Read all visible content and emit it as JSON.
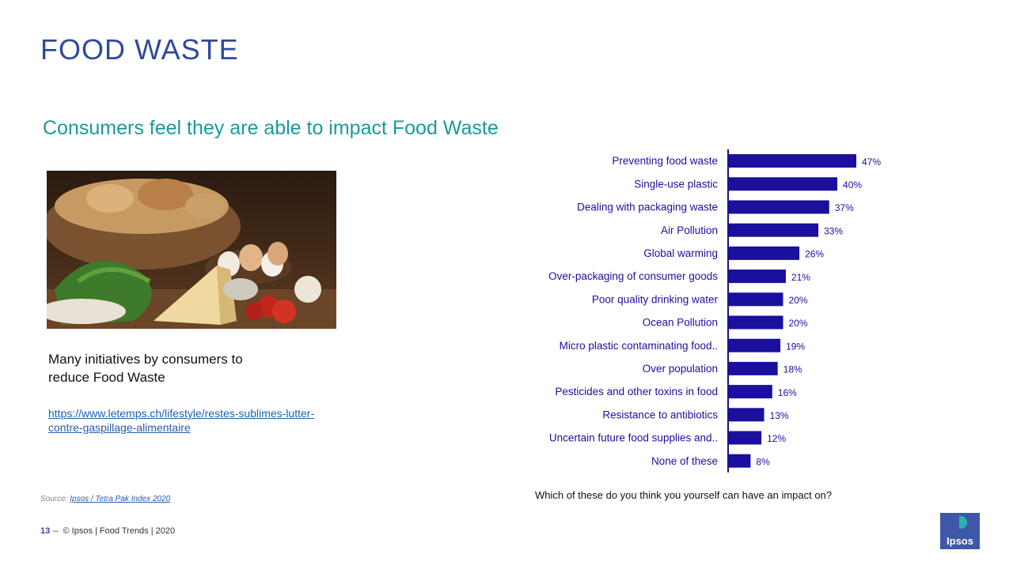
{
  "header": {
    "title": "FOOD WASTE",
    "subtitle": "Consumers feel they are able to impact Food Waste"
  },
  "left_panel": {
    "initiatives_text": "Many initiatives by consumers to reduce Food Waste",
    "link_text": "https://www.letemps.ch/lifestyle/restes-sublimes-lutter-contre-gaspillage-alimentaire"
  },
  "source": {
    "label": "Source:",
    "link": "Ipsos / Tetra Pak Index 2020"
  },
  "footer": {
    "page": "13",
    "dash": "–",
    "text": "© Ipsos | Food Trends | 2020"
  },
  "question": "Which of these do you think you yourself can have an impact on?",
  "logo_text": "Ipsos",
  "colors": {
    "bar": "#1b0f9e",
    "title": "#2f4a9c",
    "subtitle": "#1a9a9a",
    "logo": "#3f57a8",
    "logo_accent": "#2bb3b1"
  },
  "chart_data": {
    "type": "bar",
    "orientation": "horizontal",
    "categories": [
      "Preventing food waste",
      "Single-use plastic",
      "Dealing with packaging waste",
      "Air Pollution",
      "Global warming",
      "Over-packaging of consumer goods",
      "Poor quality drinking water",
      "Ocean Pollution",
      "Micro plastic contaminating food..",
      "Over population",
      "Pesticides and other toxins in food",
      "Resistance to antibiotics",
      "Uncertain future food supplies and..",
      "None of these"
    ],
    "values": [
      47,
      40,
      37,
      33,
      26,
      21,
      20,
      20,
      19,
      18,
      16,
      13,
      12,
      8
    ],
    "value_suffix": "%",
    "xlim": [
      0,
      50
    ],
    "grid": false
  }
}
